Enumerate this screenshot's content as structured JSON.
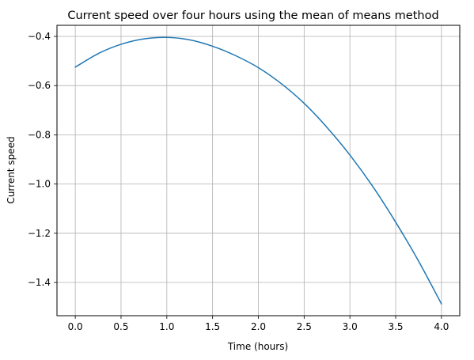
{
  "chart_data": {
    "type": "line",
    "title": "Current speed over four hours using the mean of means method",
    "xlabel": "Time (hours)",
    "ylabel": "Current speed",
    "xlim": [
      -0.2,
      4.2
    ],
    "ylim": [
      -1.535,
      -0.355
    ],
    "xticks": [
      0.0,
      0.5,
      1.0,
      1.5,
      2.0,
      2.5,
      3.0,
      3.5,
      4.0
    ],
    "xtick_labels": [
      "0.0",
      "0.5",
      "1.0",
      "1.5",
      "2.0",
      "2.5",
      "3.0",
      "3.5",
      "4.0"
    ],
    "yticks": [
      -0.4,
      -0.6,
      -0.8,
      -1.0,
      -1.2,
      -1.4
    ],
    "ytick_labels": [
      "−0.4",
      "−0.6",
      "−0.8",
      "−1.0",
      "−1.2",
      "−1.4"
    ],
    "grid": true,
    "series": [
      {
        "color": "#1f77b4",
        "x": [
          0.0,
          0.25,
          0.5,
          0.75,
          1.0,
          1.25,
          1.5,
          1.75,
          2.0,
          2.25,
          2.5,
          2.75,
          3.0,
          3.25,
          3.5,
          3.75,
          4.0
        ],
        "y": [
          -0.525,
          -0.47,
          -0.432,
          -0.41,
          -0.404,
          -0.414,
          -0.44,
          -0.478,
          -0.527,
          -0.592,
          -0.672,
          -0.77,
          -0.882,
          -1.01,
          -1.155,
          -1.313,
          -1.487
        ]
      }
    ]
  }
}
